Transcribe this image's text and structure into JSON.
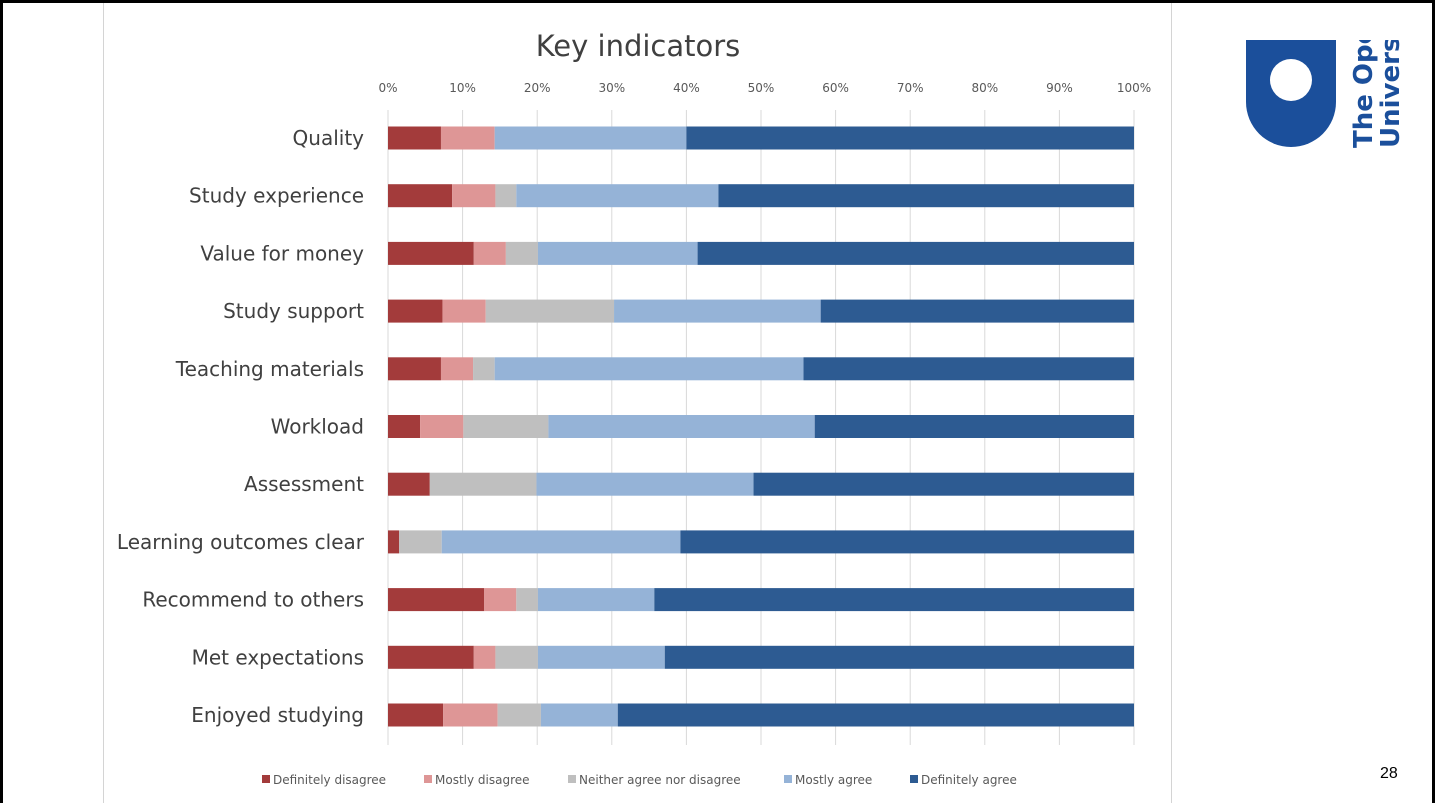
{
  "slide": {
    "page_number": "28"
  },
  "logo": {
    "line1": "The Open",
    "line2": "University"
  },
  "chart_data": {
    "type": "bar",
    "orientation": "horizontal",
    "stacked": "percent",
    "title": "Key indicators",
    "x_ticks": [
      "0%",
      "10%",
      "20%",
      "30%",
      "40%",
      "50%",
      "60%",
      "70%",
      "80%",
      "90%",
      "100%"
    ],
    "xlim": [
      0,
      100
    ],
    "grid": true,
    "legend": "bottom",
    "categories": [
      "Quality",
      "Study experience",
      "Value for money",
      "Study support",
      "Teaching materials",
      "Workload",
      "Assessment",
      "Learning outcomes clear",
      "Recommend to others",
      "Met expectations",
      "Enjoyed studying"
    ],
    "series": [
      {
        "name": "Definitely disagree",
        "color": "#a33b3b",
        "values": [
          7.1,
          8.6,
          11.5,
          7.3,
          7.1,
          4.3,
          5.6,
          1.5,
          12.9,
          11.5,
          7.4
        ]
      },
      {
        "name": "Mostly disagree",
        "color": "#de9696",
        "values": [
          7.2,
          5.8,
          4.3,
          5.8,
          4.3,
          5.8,
          0,
          0,
          4.3,
          2.9,
          7.3
        ]
      },
      {
        "name": "Neither agree nor disagree",
        "color": "#bfbfbf",
        "values": [
          0,
          2.8,
          4.3,
          17.2,
          2.9,
          11.4,
          14.3,
          5.7,
          2.9,
          5.7,
          5.8
        ]
      },
      {
        "name": "Mostly agree",
        "color": "#95b3d7",
        "values": [
          25.7,
          27.1,
          21.4,
          27.7,
          41.4,
          35.7,
          29.1,
          32.0,
          15.6,
          17.0,
          10.3
        ]
      },
      {
        "name": "Definitely agree",
        "color": "#2d5b92",
        "values": [
          60.0,
          55.7,
          58.5,
          42.0,
          44.3,
          42.8,
          51.0,
          60.8,
          64.3,
          62.9,
          69.2
        ]
      }
    ]
  }
}
